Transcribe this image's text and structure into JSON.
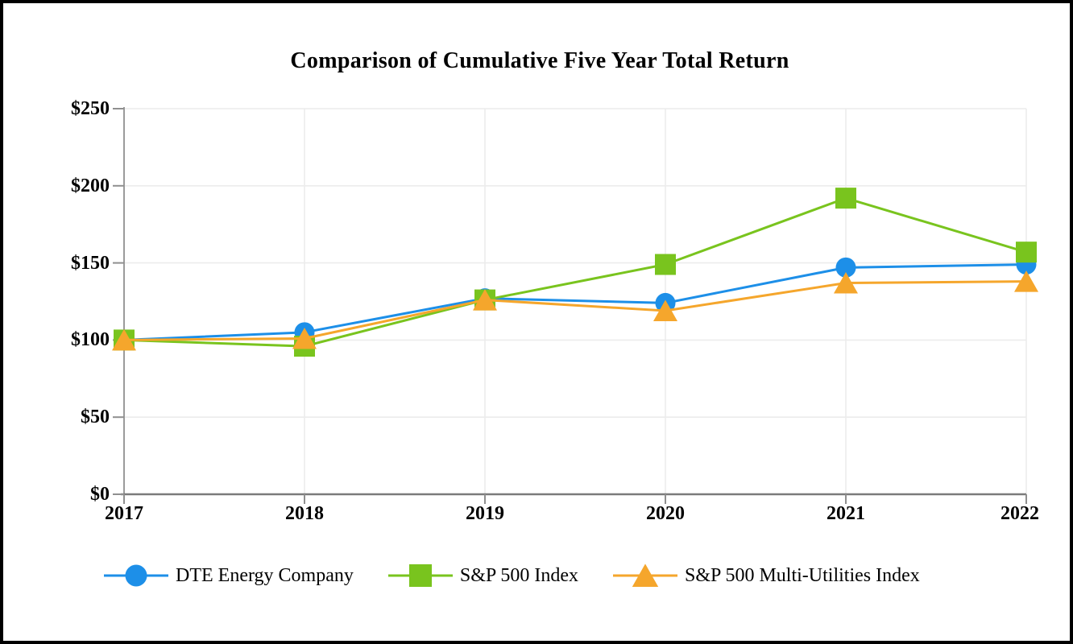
{
  "window": {
    "background_color": "#ffffff",
    "border_color": "#000000"
  },
  "chart_data": {
    "type": "line",
    "title": "Comparison of Cumulative Five Year Total Return",
    "x_categories": [
      "2017",
      "2018",
      "2019",
      "2020",
      "2021",
      "2022"
    ],
    "y_tick_labels": [
      "$0",
      "$50",
      "$100",
      "$150",
      "$200",
      "$250"
    ],
    "y_min": 0,
    "y_max": 250,
    "y_step": 50,
    "grid": true,
    "legend_position": "bottom",
    "series": [
      {
        "name": "DTE Energy Company",
        "marker": "circle",
        "color": "#1d8fe8",
        "values": [
          100,
          105,
          127,
          124,
          147,
          149
        ]
      },
      {
        "name": "S&P 500 Index",
        "marker": "square",
        "color": "#79c41e",
        "values": [
          100,
          96,
          126,
          149,
          192,
          157
        ]
      },
      {
        "name": "S&P 500 Multi-Utilities Index",
        "marker": "triangle",
        "color": "#f5a62c",
        "values": [
          100,
          101,
          126,
          119,
          137,
          138
        ]
      }
    ],
    "style_colors": {
      "gridline": "#ececec",
      "x_axis": "#7b7b7b",
      "y_axis": "#9b9b9b",
      "tick": "#8f8f8f"
    }
  }
}
